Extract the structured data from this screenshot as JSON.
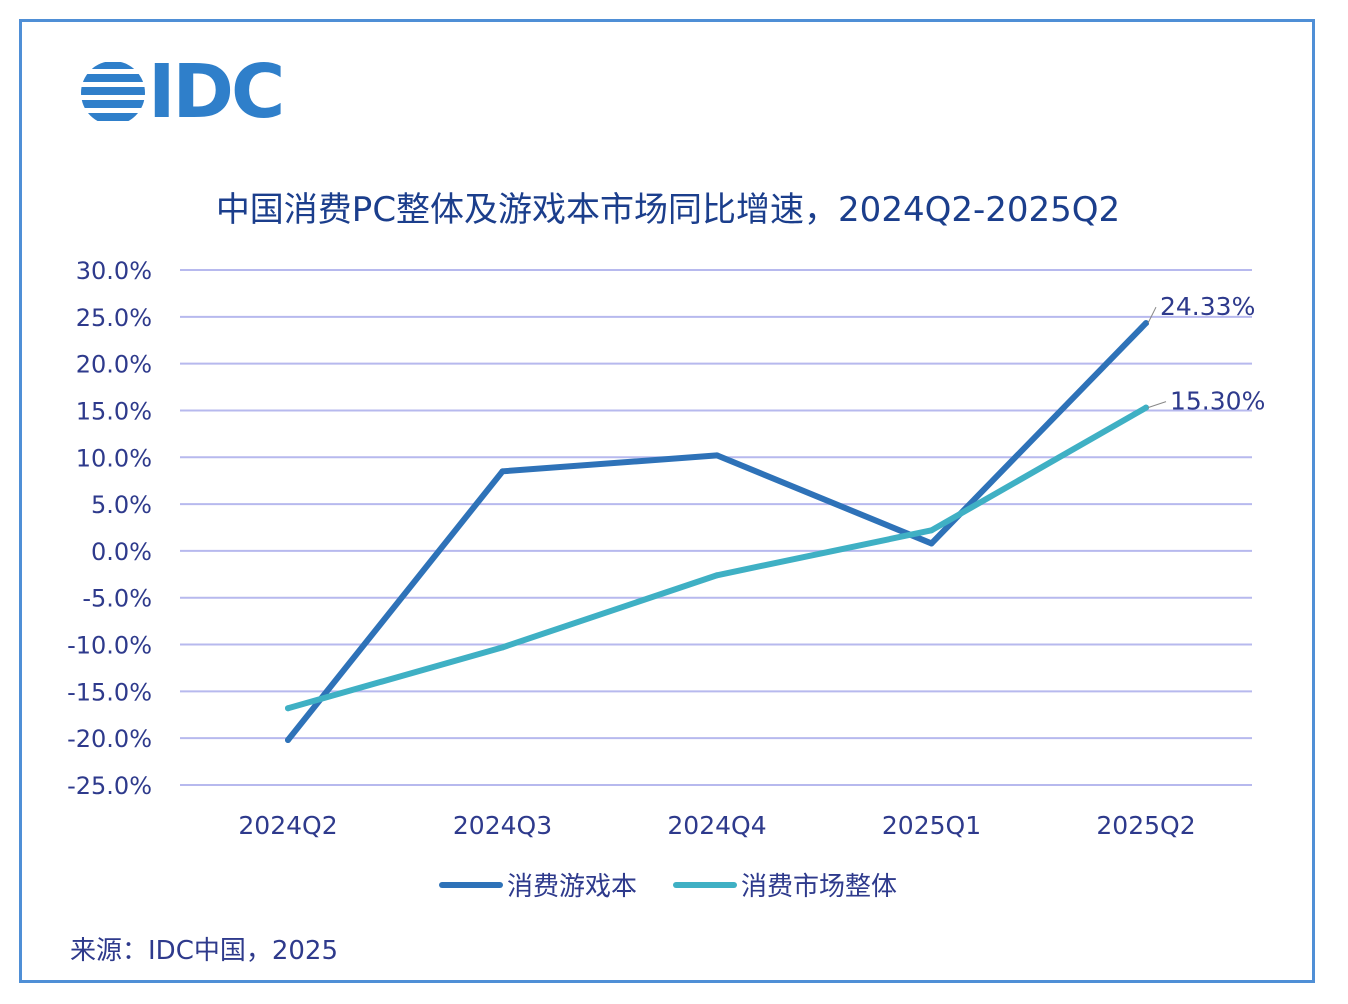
{
  "logo": {
    "text": "IDC"
  },
  "title": "中国消费PC整体及游戏本市场同比增速，2024Q2-2025Q2",
  "source": "来源：IDC中国，2025",
  "colors": {
    "border": "#4f8fd6",
    "gaming": "#2e72b8",
    "overall": "#3fb0c4",
    "grid": "#b7b9ee",
    "text": "#2e3a8c"
  },
  "chart_data": {
    "type": "line",
    "categories": [
      "2024Q2",
      "2024Q3",
      "2024Q4",
      "2025Q1",
      "2025Q2"
    ],
    "series": [
      {
        "name": "消费游戏本",
        "values": [
          -20.2,
          8.5,
          10.2,
          0.8,
          24.33
        ],
        "color": "#2e72b8"
      },
      {
        "name": "消费市场整体",
        "values": [
          -16.8,
          -10.3,
          -2.6,
          2.2,
          15.3
        ],
        "color": "#3fb0c4"
      }
    ],
    "data_labels": [
      "24.33%",
      "15.30%"
    ],
    "yticks": [
      "30.0%",
      "25.0%",
      "20.0%",
      "15.0%",
      "10.0%",
      "5.0%",
      "0.0%",
      "-5.0%",
      "-10.0%",
      "-15.0%",
      "-20.0%",
      "-25.0%"
    ],
    "ylim": [
      -25,
      30
    ],
    "grid": true,
    "legend": "bottom"
  }
}
